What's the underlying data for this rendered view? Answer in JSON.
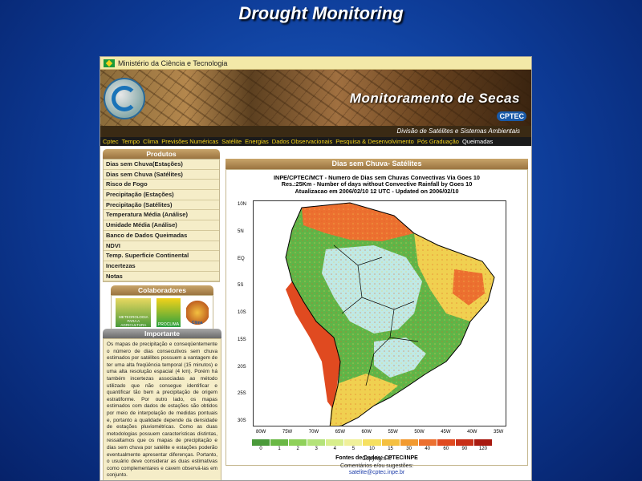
{
  "slide": {
    "title": "Drought Monitoring"
  },
  "site": {
    "ministry": "Ministério da Ciência e Tecnologia",
    "banner_title": "Monitoramento de Secas",
    "cptec_logo": "CPTEC",
    "division": "Divisão de Satélites e Sistemas Ambientais",
    "nav": [
      "Cptec",
      "Tempo",
      "Clima",
      "Previsões Numéricas",
      "Satélite",
      "Energias",
      "Dados Observacionais",
      "Pesquisa & Desenvolvimento",
      "Pós Graduação",
      "Queimadas"
    ]
  },
  "sidebar": {
    "products_title": "Produtos",
    "items": [
      "Dias sem Chuva(Estações)",
      "Dias sem Chuva (Satélites)",
      "Risco de Fogo",
      "Precipitação (Estações)",
      "Precipitação (Satélites)",
      "Temperatura Média (Análise)",
      "Umidade Média (Análise)",
      "Banco de Dados Queimadas",
      "NDVI",
      "Temp. Superficie Continental",
      "Incertezas",
      "Notas"
    ],
    "collab_title": "Colaboradores",
    "collab_logos": [
      "METEOROLOGIA PARA A AGRICULTURA",
      "PROCLIMA",
      "Clima"
    ],
    "important_title": "Importante",
    "important_text": "Os mapas de precipitação e conseqüentemente o número de dias consecutivos sem chuva estimados por satélites possuem a vantagem de ter uma alta freqüência temporal (15 minutos) e uma alta resolução espacial (4 km). Porém há também incertezas associadas ao método utilizado que não consegue identificar e quantificar tão bem a precipitação de origem estratiforme. Por outro lado, os mapas estimados com dados de estações são obtidos por meio de interpolação de medidas pontuais e, portanto a qualidade depende da densidade de estações pluviométricas. Como as duas metodologias possuem características distintas, ressaltamos que os mapas de precipitação e dias sem chuva por satélite e estações poderão eventualmente apresentar diferenças. Portanto, o usuário deve considerar as duas estimativas como complementares e cavem observá-las em conjunto."
  },
  "main": {
    "panel_title": "Dias sem Chuva- Satélites",
    "map_header_lines": [
      "INPE/CPTEC/MCT - Numero de Dias sem Chuvas Convectivas Via Goes 10",
      "Res.:25Km - Number of days without Convective Rainfall by Goes 10",
      "Atualizacao em 2006/02/10 12 UTC - Updated on 2006/02/10"
    ],
    "lat_labels": [
      "10N",
      "5N",
      "EQ",
      "5S",
      "10S",
      "15S",
      "20S",
      "25S",
      "30S"
    ],
    "lon_labels": [
      "80W",
      "75W",
      "70W",
      "65W",
      "60W",
      "55W",
      "50W",
      "45W",
      "40W",
      "35W"
    ],
    "colorbar_labels": [
      "0",
      "1",
      "2",
      "3",
      "4",
      "5",
      "10",
      "15",
      "30",
      "40",
      "60",
      "90",
      "120"
    ],
    "colorbar_colors": [
      "#4a9a3a",
      "#6ab845",
      "#8fd15a",
      "#b4e37a",
      "#d8ee8c",
      "#f0f09a",
      "#f6e060",
      "#f5c040",
      "#f29a30",
      "#ec7030",
      "#e04a20",
      "#c83018",
      "#a81a10"
    ],
    "sources": "Fontes de Dados: CPTEC/INPE",
    "footer": {
      "copyright": "Copyright ©",
      "comments": "Comentários e/ou sugestões:",
      "email": "satelite@cptec.inpe.br"
    }
  }
}
